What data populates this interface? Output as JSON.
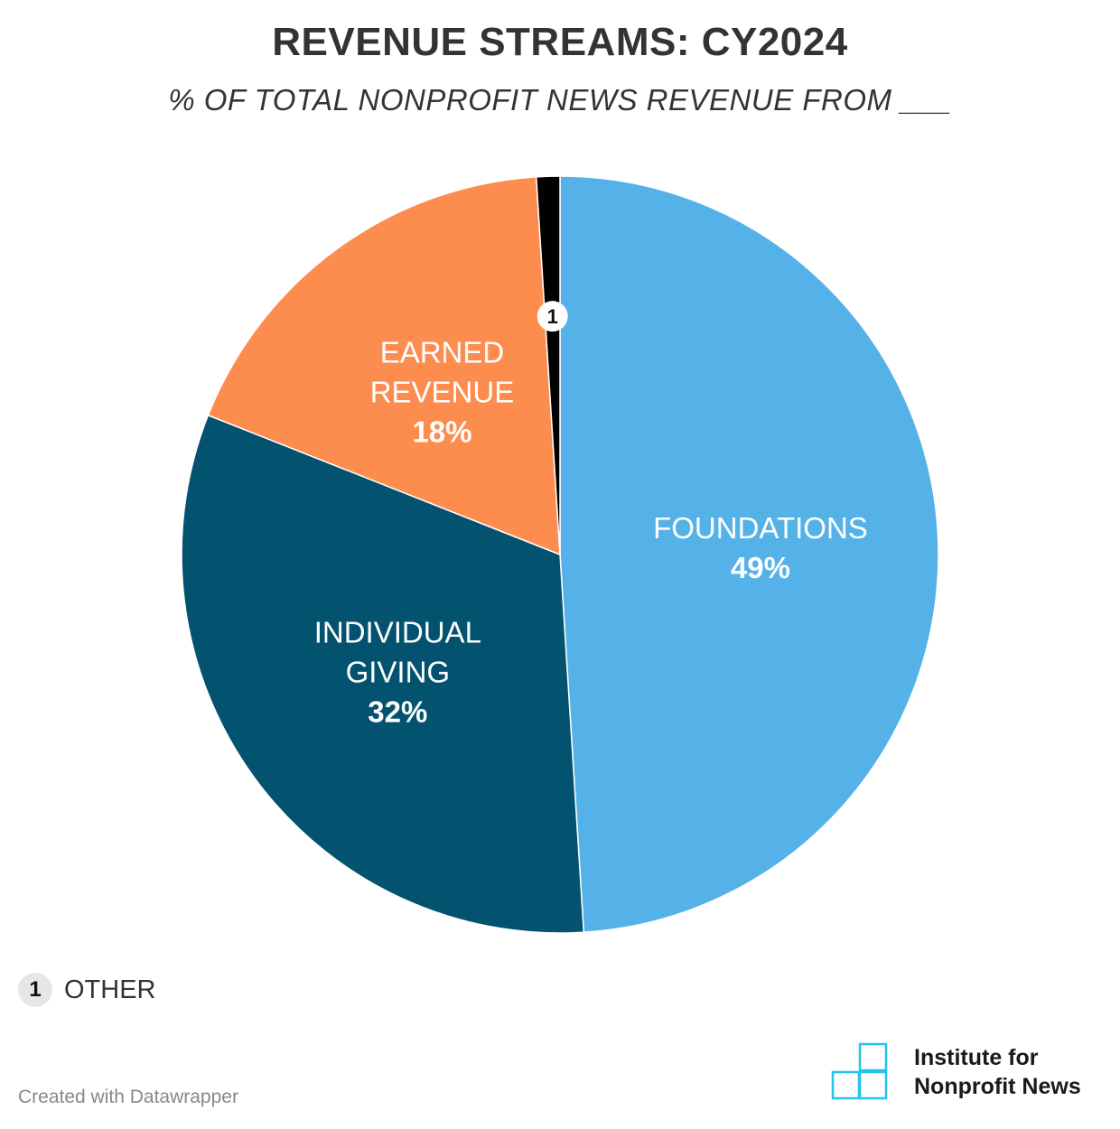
{
  "header": {
    "title": "REVENUE STREAMS: CY2024",
    "subtitle": "% OF TOTAL NONPROFIT NEWS REVENUE FROM ___"
  },
  "chart_data": {
    "type": "pie",
    "title": "REVENUE STREAMS: CY2024",
    "subtitle": "% OF TOTAL NONPROFIT NEWS REVENUE FROM ___",
    "slices": [
      {
        "label_lines": [
          "FOUNDATIONS"
        ],
        "value": 49,
        "value_label": "49%",
        "color": "#55b2e8"
      },
      {
        "label_lines": [
          "INDIVIDUAL",
          "GIVING"
        ],
        "value": 32,
        "value_label": "32%",
        "color": "#03526f"
      },
      {
        "label_lines": [
          "EARNED",
          "REVENUE"
        ],
        "value": 18,
        "value_label": "18%",
        "color": "#fd8d4e"
      },
      {
        "label_lines": [],
        "value": 1,
        "value_label": "1",
        "color": "#000000",
        "footnote": "1"
      }
    ],
    "start": "top",
    "direction": "clockwise"
  },
  "legend": {
    "marker": "1",
    "label": "OTHER"
  },
  "footer": {
    "credit": "Created with Datawrapper",
    "brand_line1": "Institute for",
    "brand_line2": "Nonprofit News",
    "brand_color": "#22c4ee",
    "brand_icon": "stacked-squares-logo-icon"
  }
}
